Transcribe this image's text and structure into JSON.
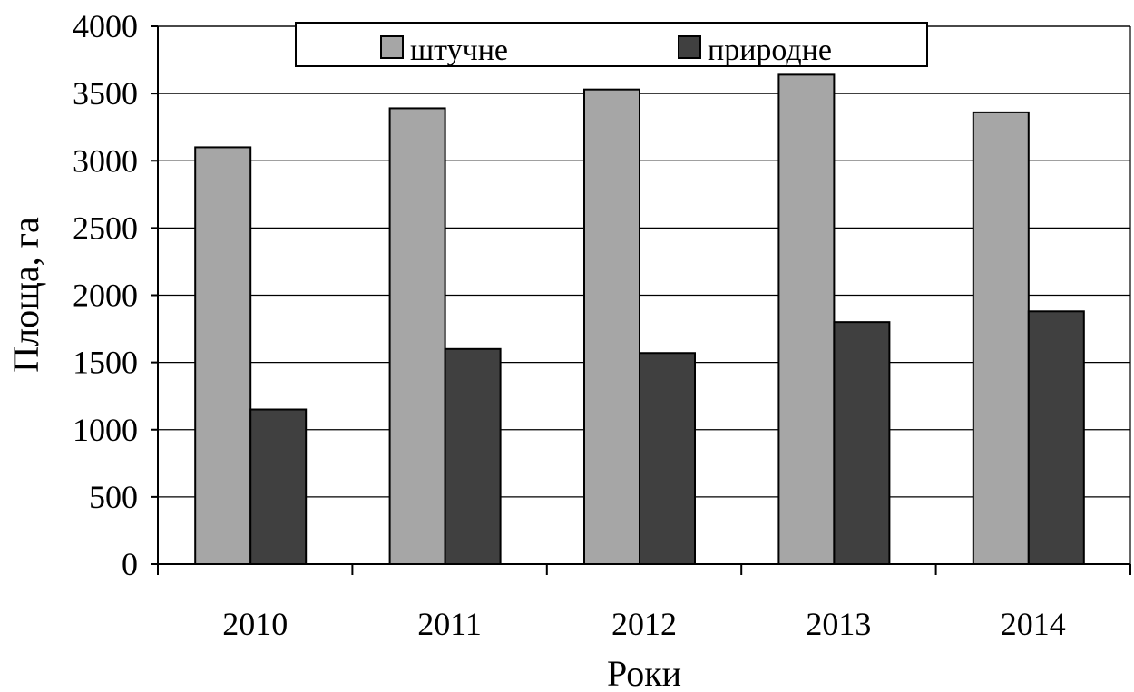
{
  "chart_data": {
    "type": "bar",
    "categories": [
      "2010",
      "2011",
      "2012",
      "2013",
      "2014"
    ],
    "series": [
      {
        "name": "штучне",
        "color": "#a6a6a6",
        "values": [
          3100,
          3390,
          3530,
          3640,
          3360
        ]
      },
      {
        "name": "природне",
        "color": "#404040",
        "values": [
          1150,
          1600,
          1570,
          1800,
          1880
        ]
      }
    ],
    "xlabel": "Роки",
    "ylabel": "Площа, га",
    "ylim": [
      0,
      4000
    ],
    "yticks": [
      "0",
      "500",
      "1000",
      "1500",
      "2000",
      "2500",
      "3000",
      "3500",
      "4000"
    ],
    "grid": true,
    "legend_position": "top"
  }
}
